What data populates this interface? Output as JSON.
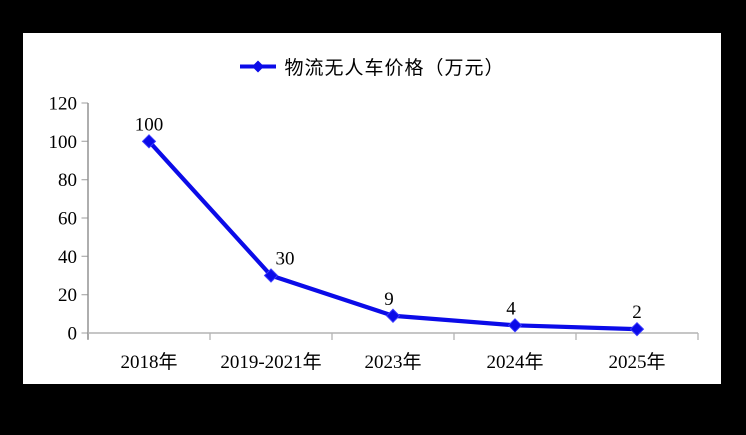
{
  "chart_data": {
    "type": "line",
    "title": "",
    "categories": [
      "2018年",
      "2019-2021年",
      "2023年",
      "2024年",
      "2025年"
    ],
    "series": [
      {
        "name": "物流无人车价格（万元）",
        "values": [
          100,
          30,
          9,
          4,
          2
        ]
      }
    ],
    "data_labels": [
      "100",
      "30",
      "9",
      "4",
      "2"
    ],
    "yticks": [
      0,
      20,
      40,
      60,
      80,
      100,
      120
    ],
    "ylim": [
      0,
      120
    ],
    "xlabel": "",
    "ylabel": "",
    "grid": false,
    "legend_position": "top-center",
    "colors": {
      "line": "#0b0be8",
      "marker": "#0b0be8",
      "marker_highlight": "#3b3bff",
      "axis": "#8c8c8c",
      "tick": "#b3b3b3",
      "baseline": "#b3b3b3",
      "text": "#000000",
      "background": "#ffffff",
      "frame": "#000000"
    }
  }
}
